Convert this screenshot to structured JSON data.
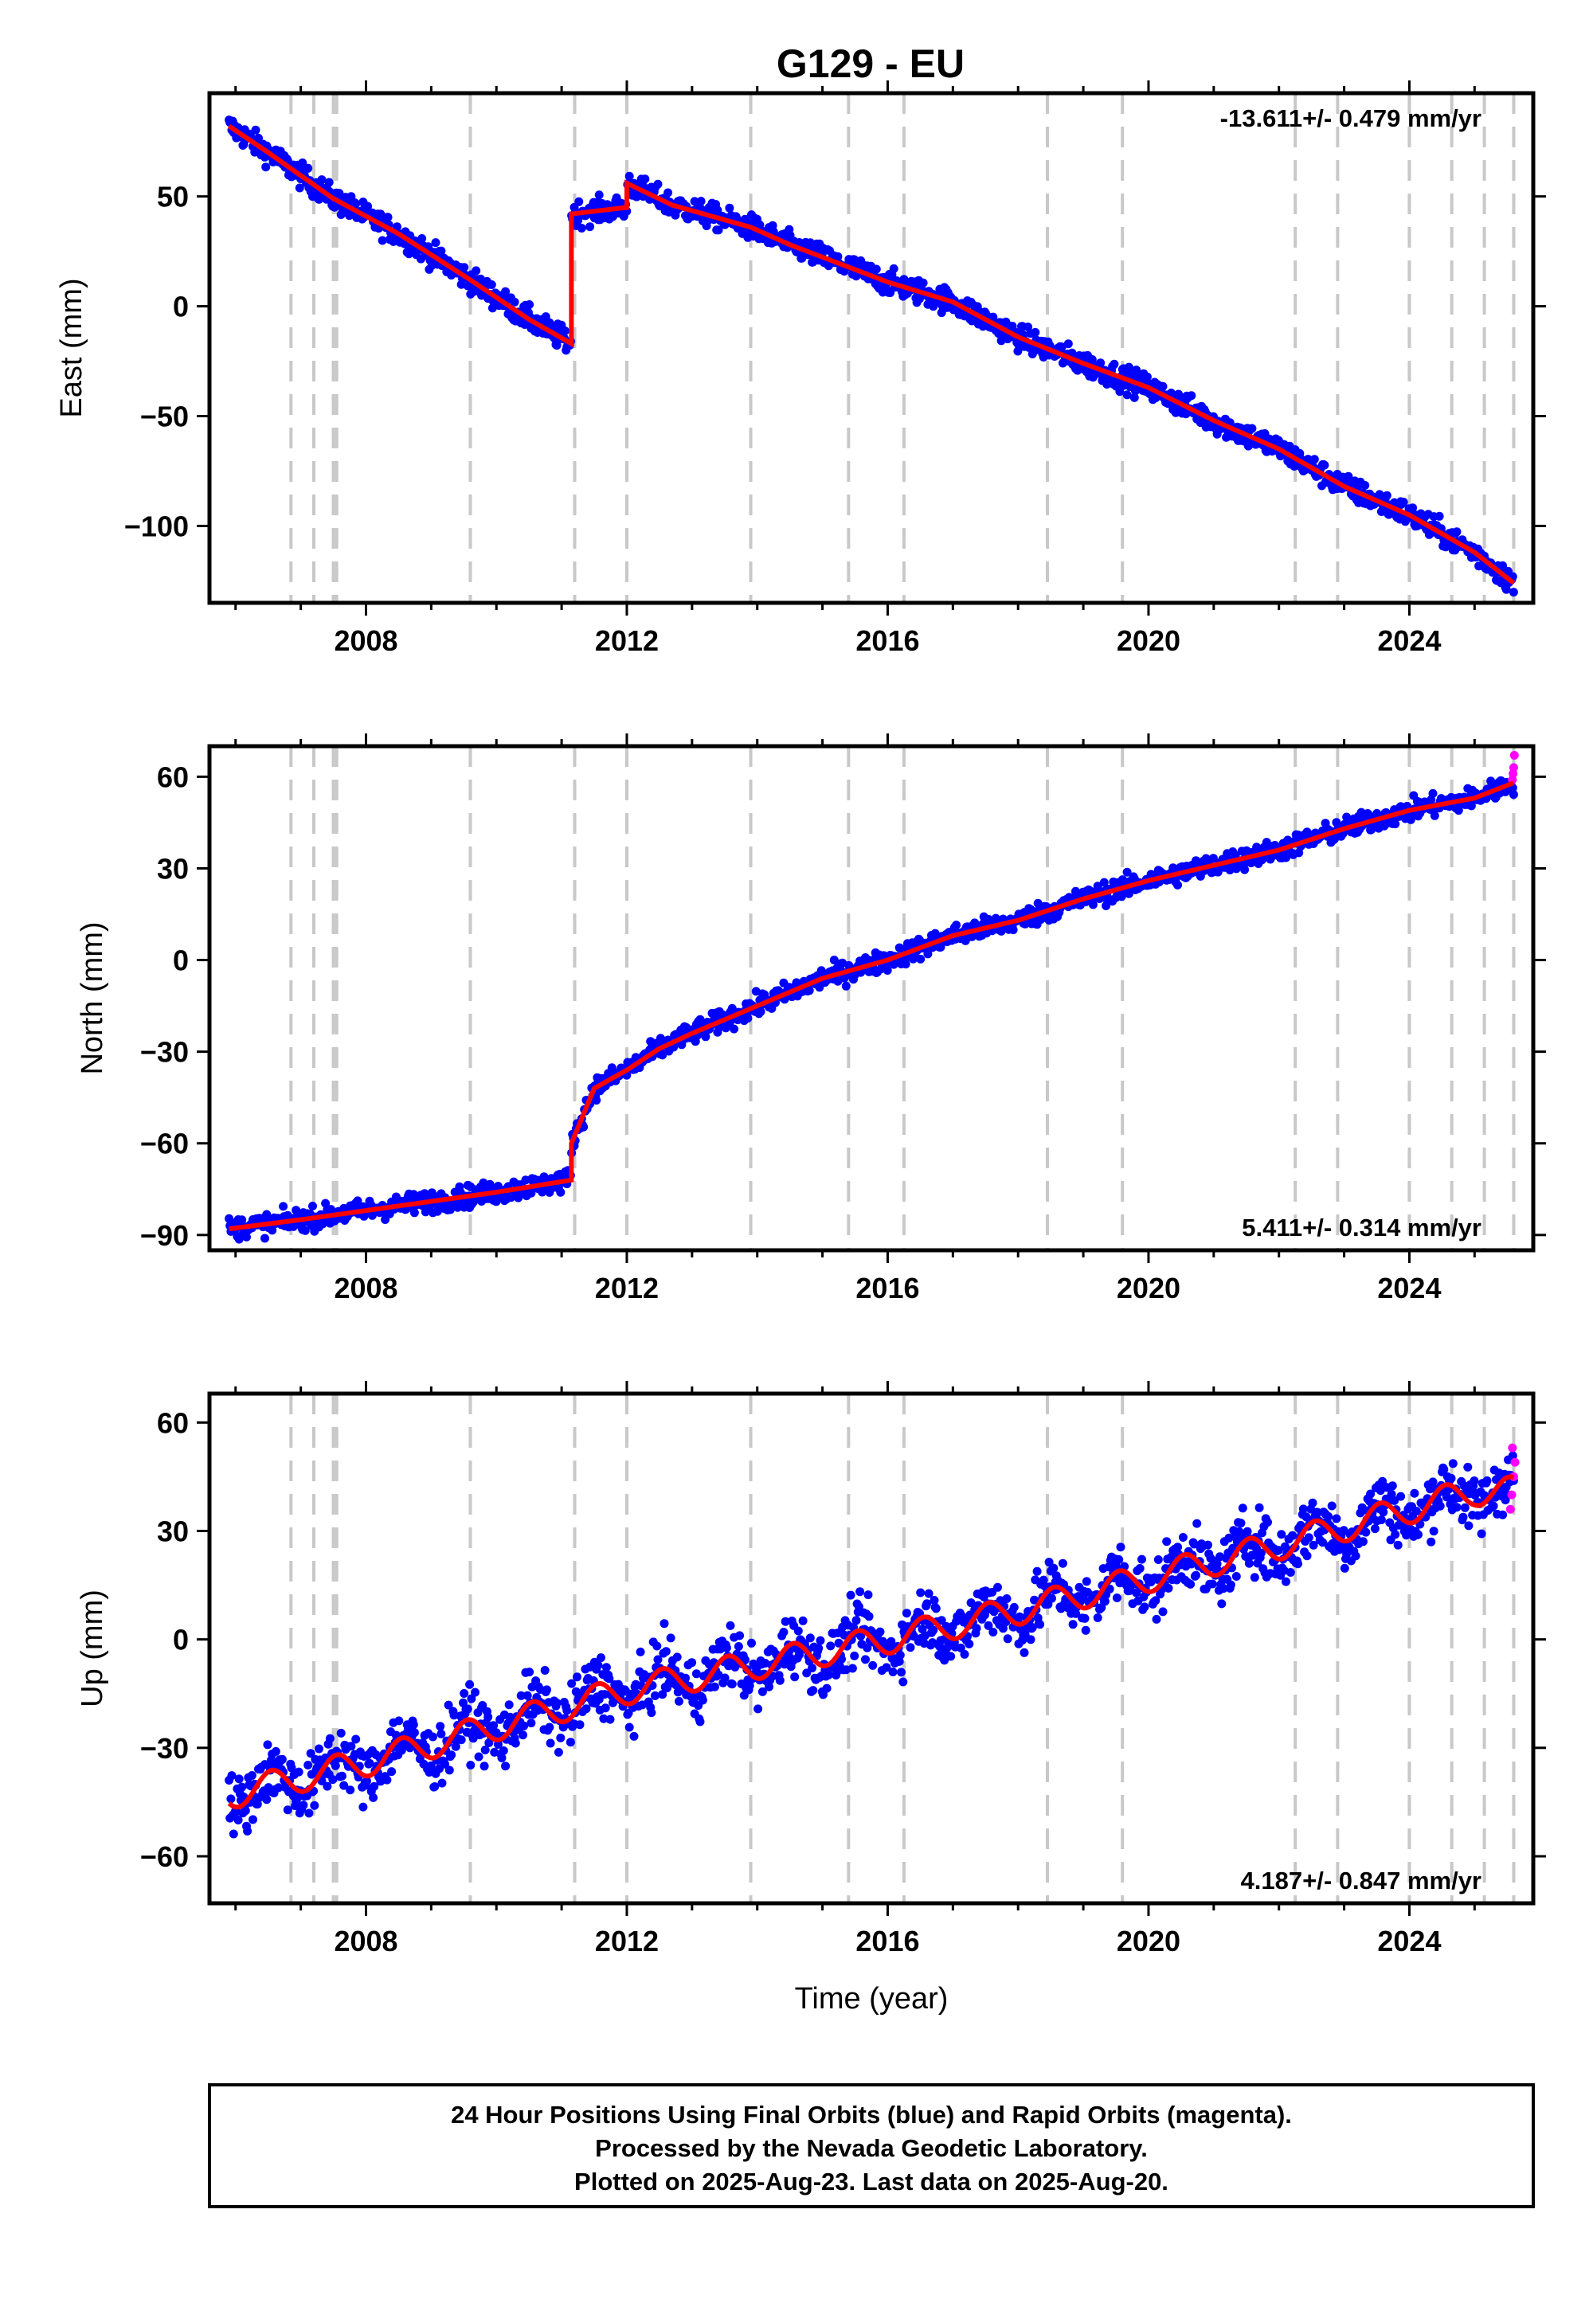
{
  "title": "G129 - EU",
  "footer": {
    "lines": [
      "24 Hour Positions Using Final Orbits (blue) and Rapid Orbits (magenta).",
      "Processed by the Nevada Geodetic Laboratory.",
      "Plotted on 2025-Aug-23. Last data on 2025-Aug-20."
    ]
  },
  "colors": {
    "final_orbits": "#0000ff",
    "rapid_orbits": "#ff00ff",
    "model": "#ff0000",
    "event_lines": "#c8c8c8",
    "axes": "#000000"
  },
  "chart_data": [
    {
      "type": "scatter",
      "name": "east",
      "title": "G129 - EU",
      "ylabel": "East (mm)",
      "xlabel": "",
      "xlim": [
        2005.6,
        2025.9
      ],
      "ylim": [
        -135,
        97
      ],
      "xticks": [
        2008,
        2012,
        2016,
        2020,
        2024
      ],
      "yticks": [
        50,
        0,
        -50,
        -100
      ],
      "rate_label": "-13.611+/- 0.479 mm/yr",
      "rate_position": "top-right",
      "trend": [
        [
          2005.9,
          82
        ],
        [
          2006.5,
          70
        ],
        [
          2007.5,
          49
        ],
        [
          2008.5,
          33
        ],
        [
          2009.6,
          12
        ],
        [
          2010.5,
          -6
        ],
        [
          2011.15,
          -17
        ],
        [
          2011.15,
          42
        ],
        [
          2012.0,
          45
        ],
        [
          2012.0,
          56
        ],
        [
          2012.7,
          46
        ],
        [
          2013.9,
          36
        ],
        [
          2014.5,
          28
        ],
        [
          2016.0,
          11
        ],
        [
          2017.0,
          2
        ],
        [
          2018.0,
          -14
        ],
        [
          2019.0,
          -26
        ],
        [
          2020.0,
          -37
        ],
        [
          2021.0,
          -52
        ],
        [
          2022.0,
          -65
        ],
        [
          2023.0,
          -82
        ],
        [
          2024.0,
          -95
        ],
        [
          2025.0,
          -112
        ],
        [
          2025.6,
          -126
        ]
      ],
      "noise_amplitude": 4
    },
    {
      "type": "scatter",
      "name": "north",
      "title": "",
      "ylabel": "North (mm)",
      "xlabel": "",
      "xlim": [
        2005.6,
        2025.9
      ],
      "ylim": [
        -95,
        70
      ],
      "xticks": [
        2008,
        2012,
        2016,
        2020,
        2024
      ],
      "yticks": [
        60,
        30,
        0,
        -30,
        -60,
        -90
      ],
      "rate_label": "5.411+/- 0.314 mm/yr",
      "rate_position": "bottom-right",
      "trend": [
        [
          2005.9,
          -88
        ],
        [
          2007.0,
          -85
        ],
        [
          2008.0,
          -82
        ],
        [
          2009.0,
          -79
        ],
        [
          2010.0,
          -76
        ],
        [
          2011.15,
          -72
        ],
        [
          2011.15,
          -60
        ],
        [
          2011.5,
          -42
        ],
        [
          2012.0,
          -36
        ],
        [
          2012.5,
          -29
        ],
        [
          2013.0,
          -24
        ],
        [
          2014.0,
          -15
        ],
        [
          2015.0,
          -6
        ],
        [
          2016.0,
          0
        ],
        [
          2017.0,
          8
        ],
        [
          2018.0,
          13
        ],
        [
          2019.0,
          20
        ],
        [
          2020.0,
          26
        ],
        [
          2021.0,
          31
        ],
        [
          2022.0,
          36
        ],
        [
          2023.0,
          43
        ],
        [
          2024.0,
          49
        ],
        [
          2025.0,
          53
        ],
        [
          2025.6,
          58
        ]
      ],
      "noise_amplitude": 2.5,
      "rapid_points": [
        [
          2025.58,
          59
        ],
        [
          2025.59,
          61
        ],
        [
          2025.6,
          63
        ],
        [
          2025.61,
          67
        ]
      ]
    },
    {
      "type": "scatter",
      "name": "up",
      "title": "",
      "ylabel": "Up (mm)",
      "xlabel": "Time (year)",
      "xlim": [
        2005.6,
        2025.9
      ],
      "ylim": [
        -73,
        68
      ],
      "xticks": [
        2008,
        2012,
        2016,
        2020,
        2024
      ],
      "yticks": [
        60,
        30,
        0,
        -30,
        -60
      ],
      "rate_label": "4.187+/- 0.847 mm/yr",
      "rate_position": "bottom-right",
      "trend": [
        [
          2005.9,
          -43
        ],
        [
          2008.0,
          -34
        ],
        [
          2010.0,
          -24
        ],
        [
          2012.0,
          -14
        ],
        [
          2014.0,
          -7
        ],
        [
          2016.0,
          0
        ],
        [
          2018.0,
          8
        ],
        [
          2020.0,
          17
        ],
        [
          2022.0,
          26
        ],
        [
          2024.0,
          36
        ],
        [
          2025.0,
          41
        ],
        [
          2025.6,
          41
        ]
      ],
      "seasonal_amplitude": 4,
      "noise_amplitude": 6,
      "rapid_points": [
        [
          2025.55,
          36
        ],
        [
          2025.57,
          40
        ],
        [
          2025.6,
          45
        ],
        [
          2025.62,
          49
        ],
        [
          2025.58,
          53
        ]
      ]
    }
  ],
  "event_lines": [
    2006.85,
    2007.2,
    2007.5,
    2007.55,
    2009.6,
    2011.2,
    2012.0,
    2013.9,
    2015.4,
    2016.25,
    2018.45,
    2019.6,
    2022.25,
    2022.9,
    2024.0,
    2024.65,
    2025.15,
    2025.6
  ]
}
